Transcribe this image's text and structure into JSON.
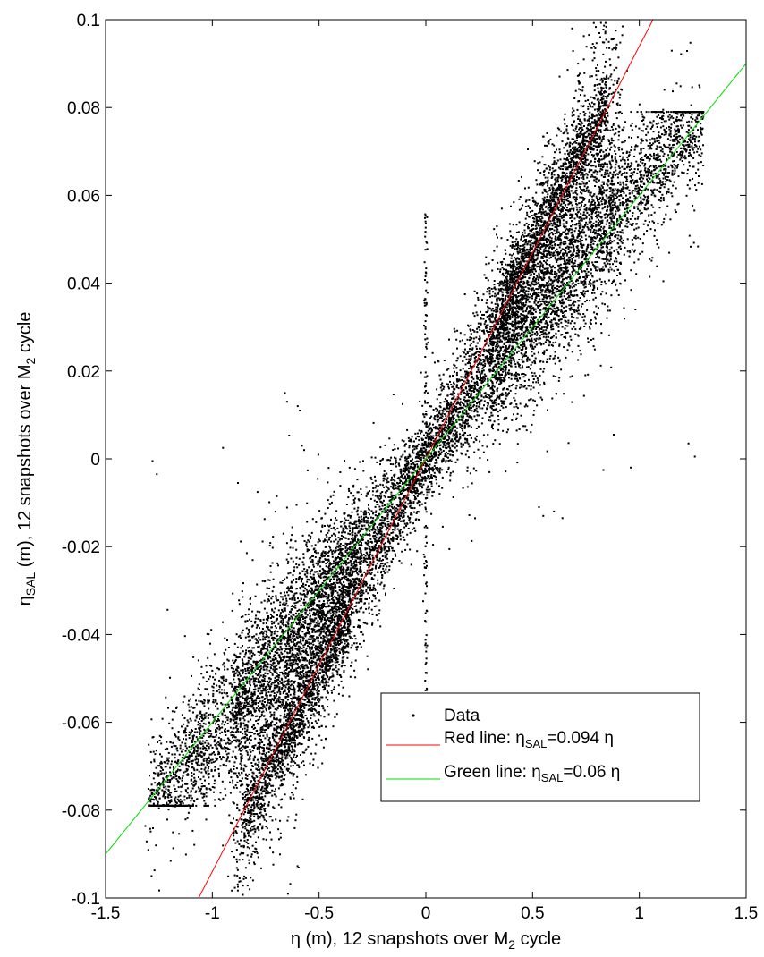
{
  "chart_data": {
    "type": "scatter",
    "title": "",
    "xlabel": {
      "main": "η (m), 12 snapshots over M",
      "sub": "2",
      "tail": " cycle"
    },
    "ylabel": {
      "main": "η",
      "sub": "SAL",
      "tail": " (m), 12 snapshots over M",
      "sub2": "2",
      "tail2": " cycle"
    },
    "xlim": [
      -1.5,
      1.5
    ],
    "ylim": [
      -0.1,
      0.1
    ],
    "xticks": [
      -1.5,
      -1,
      -0.5,
      0,
      0.5,
      1,
      1.5
    ],
    "xtick_labels": [
      "-1.5",
      "-1",
      "-0.5",
      "0",
      "0.5",
      "1",
      "1.5"
    ],
    "yticks": [
      -0.1,
      -0.08,
      -0.06,
      -0.04,
      -0.02,
      0,
      0.02,
      0.04,
      0.06,
      0.08,
      0.1
    ],
    "ytick_labels": [
      "-0.1",
      "-0.08",
      "-0.06",
      "-0.04",
      "-0.02",
      "0",
      "0.02",
      "0.04",
      "0.06",
      "0.08",
      "0.1"
    ],
    "grid": false,
    "legend_position": "lower-right",
    "series": [
      {
        "name": "Data",
        "kind": "scatter",
        "color": "#000000",
        "description_points": [
          [
            -1.28,
            -0.0005
          ],
          [
            -1.26,
            -0.0035
          ],
          [
            -0.95,
            0.0025
          ],
          [
            -0.88,
            -0.0055
          ],
          [
            -0.66,
            0.015
          ],
          [
            -0.65,
            0.013
          ],
          [
            -0.6,
            0.012
          ],
          [
            -0.59,
            0.011
          ],
          [
            -0.64,
            0.0053
          ],
          [
            -0.58,
            0.003
          ],
          [
            -0.57,
            0.002
          ],
          [
            0.88,
            0.0055
          ],
          [
            0.96,
            -0.002
          ],
          [
            1.23,
            0.0035
          ],
          [
            1.26,
            0.0005
          ],
          [
            0.53,
            -0.011
          ],
          [
            0.55,
            -0.013
          ],
          [
            0.6,
            -0.012
          ],
          [
            0.64,
            -0.0135
          ]
        ]
      },
      {
        "name": "Red line:  η",
        "name_sub": "SAL",
        "name_tail": "=0.094 η",
        "kind": "line",
        "color": "#ff0000",
        "slope": 0.094,
        "x": [
          -1.064,
          1.064
        ],
        "y": [
          -0.1,
          0.1
        ]
      },
      {
        "name": "Green line: η",
        "name_sub": "SAL",
        "name_tail": "=0.06 η",
        "kind": "line",
        "color": "#00dd00",
        "slope": 0.06,
        "x": [
          -1.5,
          1.5
        ],
        "y": [
          -0.09,
          0.09
        ]
      }
    ]
  }
}
